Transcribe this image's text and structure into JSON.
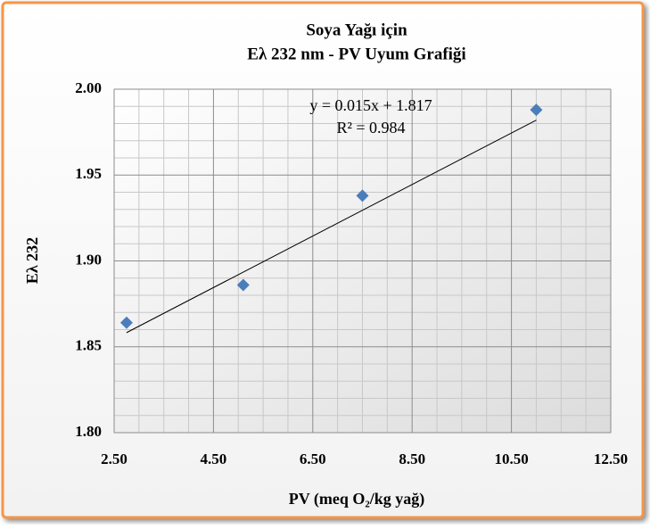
{
  "chart_data": {
    "type": "scatter",
    "title": "Soya Yağı için",
    "subtitle": "Eλ 232 nm - PV Uyum Grafiği",
    "x_label": "PV (meq O₂/kg yağ)",
    "y_label": "Eλ 232",
    "x": [
      2.75,
      5.1,
      7.5,
      11.0
    ],
    "values": [
      1.864,
      1.886,
      1.938,
      1.988
    ],
    "color": "#4a7ebb",
    "xlim": [
      2.5,
      12.5
    ],
    "xticks": [
      {
        "value": 2.5,
        "label": "2.50"
      },
      {
        "value": 4.5,
        "label": "4.50"
      },
      {
        "value": 6.5,
        "label": "6.50"
      },
      {
        "value": 8.5,
        "label": "8.50"
      },
      {
        "value": 10.5,
        "label": "10.50"
      },
      {
        "value": 12.5,
        "label": "12.50"
      }
    ],
    "ylim": [
      1.8,
      2.0
    ],
    "yticks": [
      {
        "value": 1.8,
        "label": "1.80"
      },
      1.85,
      {
        "value": 1.9,
        "label": "1.90"
      },
      1.95,
      {
        "value": 2.0,
        "label": "2.00"
      }
    ],
    "grid": true,
    "trendline": {
      "slope": 0.015,
      "intercept": 1.817,
      "equation": "y = 0.015x + 1.817",
      "r_squared": "R² = 0.984"
    }
  }
}
